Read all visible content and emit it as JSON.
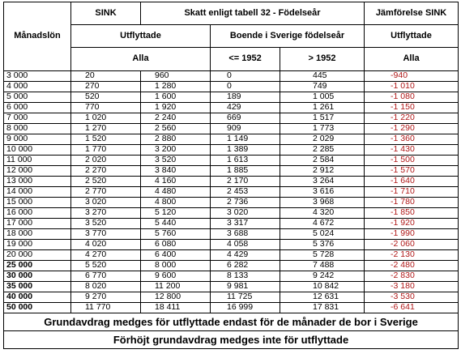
{
  "header": {
    "col_month": "Månadslön",
    "sink": "SINK",
    "skatt": "Skatt enligt tabell 32 - Födelseår",
    "jamfor": "Jämförelse SINK",
    "utflyttade": "Utflyttade",
    "boende": "Boende i Sverige födelseår",
    "utflyttade2": "Utflyttade",
    "alla": "Alla",
    "le1952": "<= 1952",
    "gt1952": "> 1952",
    "alla2": "Alla"
  },
  "rows": [
    {
      "lon": "3 000",
      "a": "20",
      "b": "960",
      "c": "0",
      "d": "445",
      "e": "-940",
      "bold": false
    },
    {
      "lon": "4 000",
      "a": "270",
      "b": "1 280",
      "c": "0",
      "d": "749",
      "e": "-1 010",
      "bold": false
    },
    {
      "lon": "5 000",
      "a": "520",
      "b": "1 600",
      "c": "189",
      "d": "1 005",
      "e": "-1 080",
      "bold": false
    },
    {
      "lon": "6 000",
      "a": "770",
      "b": "1 920",
      "c": "429",
      "d": "1 261",
      "e": "-1 150",
      "bold": false
    },
    {
      "lon": "7 000",
      "a": "1 020",
      "b": "2 240",
      "c": "669",
      "d": "1 517",
      "e": "-1 220",
      "bold": false
    },
    {
      "lon": "8 000",
      "a": "1 270",
      "b": "2 560",
      "c": "909",
      "d": "1 773",
      "e": "-1 290",
      "bold": false
    },
    {
      "lon": "9 000",
      "a": "1 520",
      "b": "2 880",
      "c": "1 149",
      "d": "2 029",
      "e": "-1 360",
      "bold": false
    },
    {
      "lon": "10 000",
      "a": "1 770",
      "b": "3 200",
      "c": "1 389",
      "d": "2 285",
      "e": "-1 430",
      "bold": false
    },
    {
      "lon": "11 000",
      "a": "2 020",
      "b": "3 520",
      "c": "1 613",
      "d": "2 584",
      "e": "-1 500",
      "bold": false
    },
    {
      "lon": "12 000",
      "a": "2 270",
      "b": "3 840",
      "c": "1 885",
      "d": "2 912",
      "e": "-1 570",
      "bold": false
    },
    {
      "lon": "13 000",
      "a": "2 520",
      "b": "4 160",
      "c": "2 170",
      "d": "3 264",
      "e": "-1 640",
      "bold": false
    },
    {
      "lon": "14 000",
      "a": "2 770",
      "b": "4 480",
      "c": "2 453",
      "d": "3 616",
      "e": "-1 710",
      "bold": false
    },
    {
      "lon": "15 000",
      "a": "3 020",
      "b": "4 800",
      "c": "2 736",
      "d": "3 968",
      "e": "-1 780",
      "bold": false
    },
    {
      "lon": "16 000",
      "a": "3 270",
      "b": "5 120",
      "c": "3 020",
      "d": "4 320",
      "e": "-1 850",
      "bold": false
    },
    {
      "lon": "17 000",
      "a": "3 520",
      "b": "5 440",
      "c": "3 317",
      "d": "4 672",
      "e": "-1 920",
      "bold": false
    },
    {
      "lon": "18 000",
      "a": "3 770",
      "b": "5 760",
      "c": "3 688",
      "d": "5 024",
      "e": "-1 990",
      "bold": false
    },
    {
      "lon": "19 000",
      "a": "4 020",
      "b": "6 080",
      "c": "4 058",
      "d": "5 376",
      "e": "-2 060",
      "bold": false
    },
    {
      "lon": "20 000",
      "a": "4 270",
      "b": "6 400",
      "c": "4 429",
      "d": "5 728",
      "e": "-2 130",
      "bold": false
    },
    {
      "lon": "25 000",
      "a": "5 520",
      "b": "8 000",
      "c": "6 282",
      "d": "7 488",
      "e": "-2 480",
      "bold": true
    },
    {
      "lon": "30 000",
      "a": "6 770",
      "b": "9 600",
      "c": "8 133",
      "d": "9 242",
      "e": "-2 830",
      "bold": true
    },
    {
      "lon": "35 000",
      "a": "8 020",
      "b": "11 200",
      "c": "9 981",
      "d": "10 842",
      "e": "-3 180",
      "bold": true
    },
    {
      "lon": "40 000",
      "a": "9 270",
      "b": "12 800",
      "c": "11 725",
      "d": "12 631",
      "e": "-3 530",
      "bold": true
    },
    {
      "lon": "50 000",
      "a": "11 770",
      "b": "18 411",
      "c": "16 999",
      "d": "17 831",
      "e": "-6 641",
      "bold": true
    }
  ],
  "footer": {
    "line1": "Grundavdrag medges för utflyttade endast för de månader de bor i Sverige",
    "line2": "Förhöjt grundavdrag medges inte för utflyttade"
  }
}
